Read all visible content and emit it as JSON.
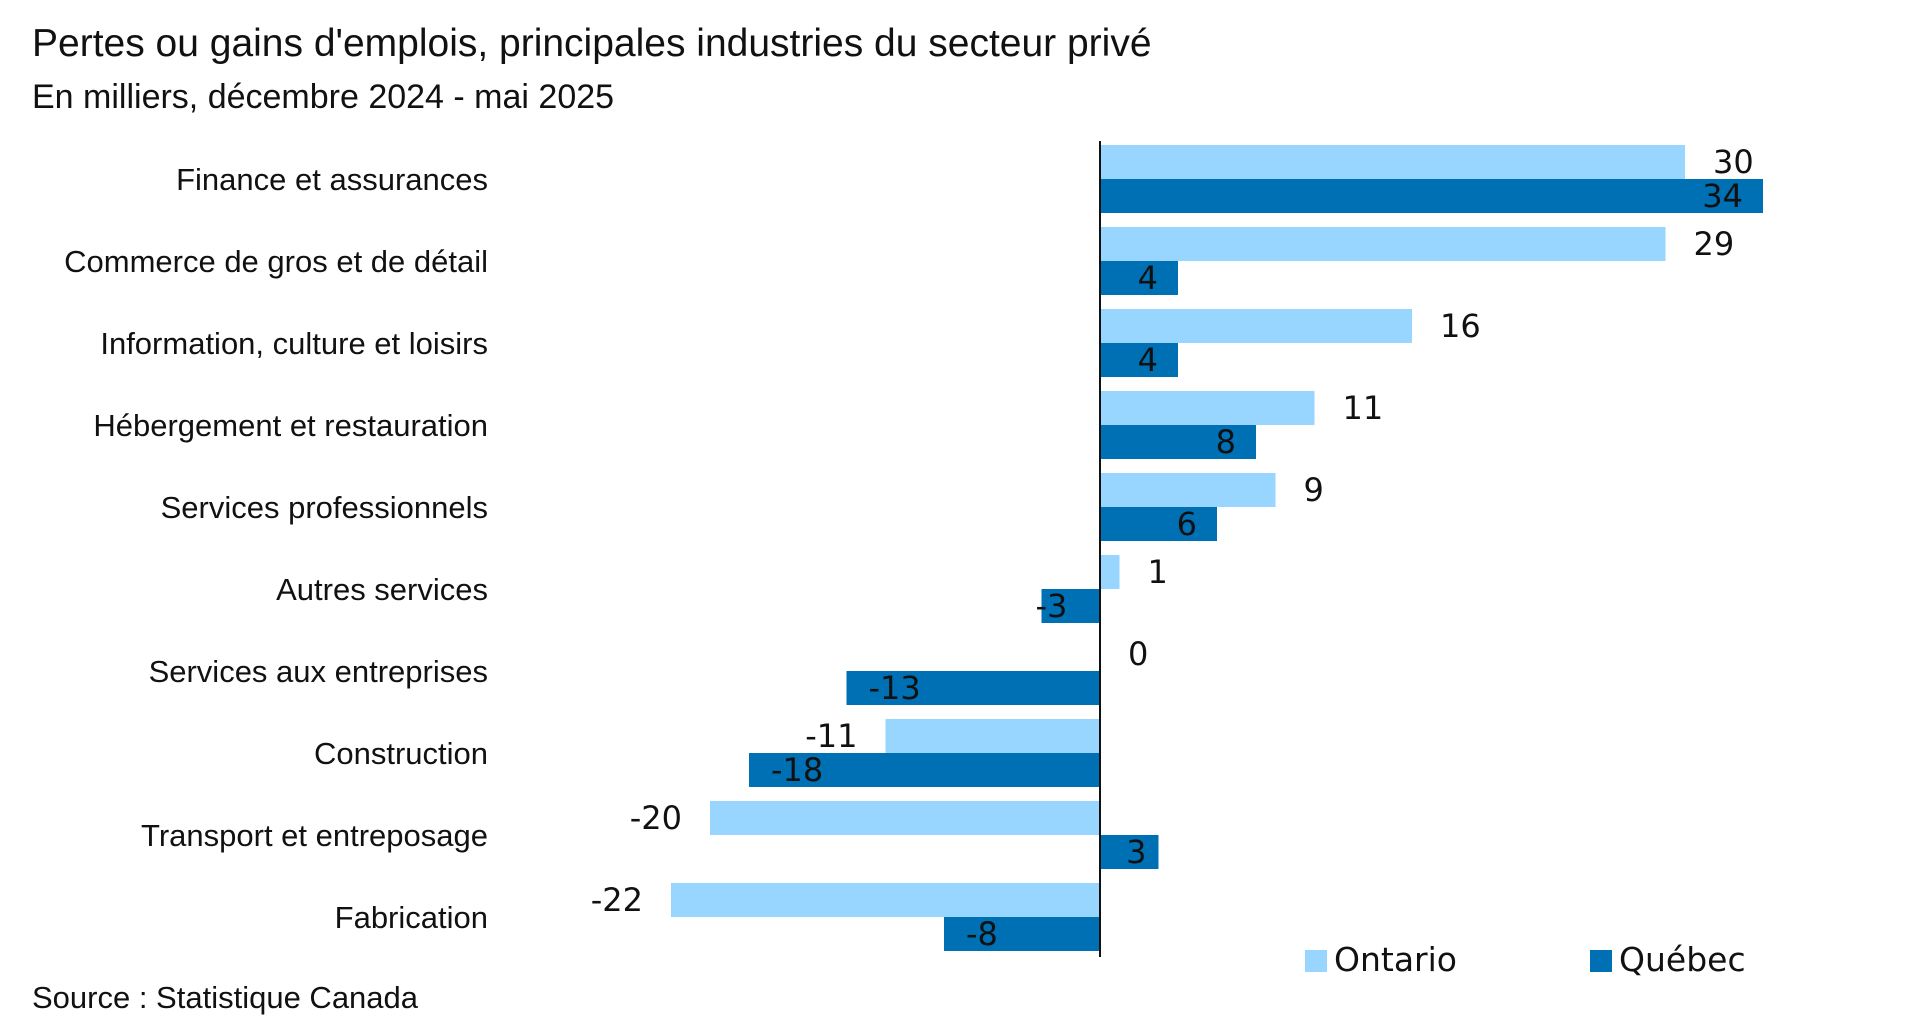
{
  "title": "Pertes ou gains d'emplois, principales industries du secteur privé",
  "subtitle": "En milliers, décembre 2024 - mai 2025",
  "source": "Source : Statistique Canada",
  "colors": {
    "ontario": "#99d6ff",
    "quebec": "#0070b5",
    "axis": "#111111"
  },
  "chart_data": {
    "type": "bar",
    "orientation": "horizontal",
    "categories": [
      "Finance et assurances",
      "Commerce de gros et de détail",
      "Information, culture et loisirs",
      "Hébergement et restauration",
      "Services professionnels",
      "Autres services",
      "Services aux entreprises",
      "Construction",
      "Transport et entreposage",
      "Fabrication"
    ],
    "series": [
      {
        "name": "Ontario",
        "values": [
          30,
          29,
          16,
          11,
          9,
          1,
          0,
          -11,
          -20,
          -22
        ]
      },
      {
        "name": "Québec",
        "values": [
          34,
          4,
          4,
          8,
          6,
          -3,
          -13,
          -18,
          3,
          -8
        ]
      }
    ],
    "xlim": [
      -23,
      35
    ],
    "grid": false,
    "legend_position": "bottom-right",
    "data_labels": true
  }
}
